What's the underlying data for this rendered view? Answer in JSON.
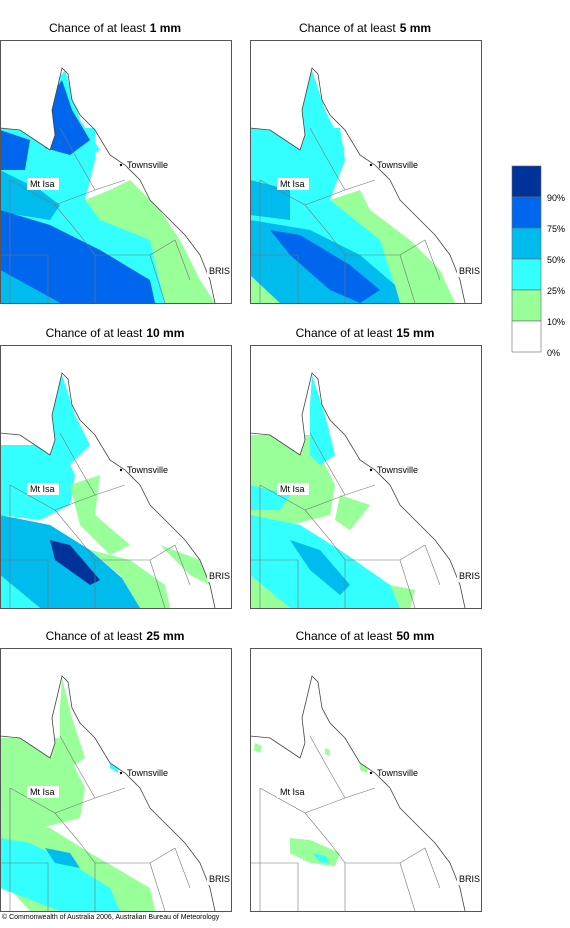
{
  "panels": [
    {
      "title": "Chance of at least",
      "amount": "1 mm"
    },
    {
      "title": "Chance of at least",
      "amount": "5 mm"
    },
    {
      "title": "Chance of at least",
      "amount": "10 mm"
    },
    {
      "title": "Chance of at least",
      "amount": "15 mm"
    },
    {
      "title": "Chance of at least",
      "amount": "25 mm"
    },
    {
      "title": "Chance of at least",
      "amount": "50 mm"
    }
  ],
  "places": {
    "townsville": "Townsville",
    "mt_isa": "Mt Isa",
    "bris": "BRIS"
  },
  "legend": {
    "labels": [
      "90%",
      "75%",
      "50%",
      "25%",
      "10%",
      "0%"
    ]
  },
  "copyright": "© Commonwealth of Australia 2006, Australian Bureau of Meteorology"
}
